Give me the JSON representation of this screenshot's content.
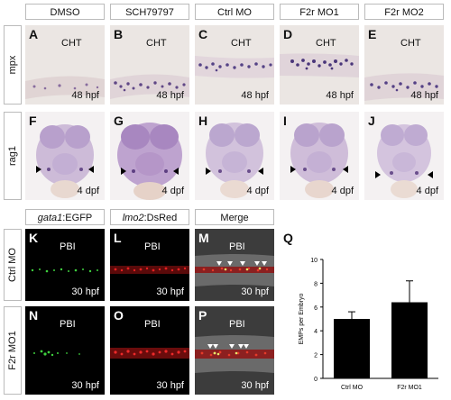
{
  "top_headers": [
    "DMSO",
    "SCH79797",
    "Ctrl MO",
    "F2r MO1",
    "F2r MO2"
  ],
  "row_labels": {
    "mpx": "mpx",
    "rag1": "rag1",
    "ctrl": "Ctrl MO",
    "f2r": "F2r MO1"
  },
  "mpx_panels": [
    {
      "letter": "A",
      "region": "CHT",
      "stage": "48 hpf"
    },
    {
      "letter": "B",
      "region": "CHT",
      "stage": "48 hpf"
    },
    {
      "letter": "C",
      "region": "CHT",
      "stage": "48 hpf"
    },
    {
      "letter": "D",
      "region": "CHT",
      "stage": "48 hpf"
    },
    {
      "letter": "E",
      "region": "CHT",
      "stage": "48 hpf"
    }
  ],
  "rag1_panels": [
    {
      "letter": "F",
      "stage": "4 dpf"
    },
    {
      "letter": "G",
      "stage": "4 dpf"
    },
    {
      "letter": "H",
      "stage": "4 dpf"
    },
    {
      "letter": "I",
      "stage": "4 dpf"
    },
    {
      "letter": "J",
      "stage": "4 dpf"
    }
  ],
  "fluor_headers": {
    "gata1": {
      "gene": "gata1",
      "suffix": ":EGFP"
    },
    "lmo2": {
      "gene": "lmo2",
      "suffix": ":DsRed"
    },
    "merge": "Merge"
  },
  "fluor_rows": [
    [
      {
        "letter": "K",
        "region": "PBI",
        "stage": "30 hpf"
      },
      {
        "letter": "L",
        "region": "PBI",
        "stage": "30 hpf"
      },
      {
        "letter": "M",
        "region": "PBI",
        "stage": "30 hpf"
      }
    ],
    [
      {
        "letter": "N",
        "region": "PBI",
        "stage": "30 hpf"
      },
      {
        "letter": "O",
        "region": "PBI",
        "stage": "30 hpf"
      },
      {
        "letter": "P",
        "region": "PBI",
        "stage": "30 hpf"
      }
    ]
  ],
  "chart_letter": "Q",
  "chart_data": {
    "type": "bar",
    "categories": [
      "Ctrl MO",
      "F2r MO1"
    ],
    "values": [
      5.0,
      6.4
    ],
    "errors": [
      0.6,
      1.8
    ],
    "ylabel": "EMPs per Embryo",
    "xlabel": "",
    "ylim": [
      0,
      10
    ],
    "yticks": [
      0,
      2,
      4,
      6,
      8,
      10
    ],
    "bar_color": "#000000",
    "grid": false
  }
}
